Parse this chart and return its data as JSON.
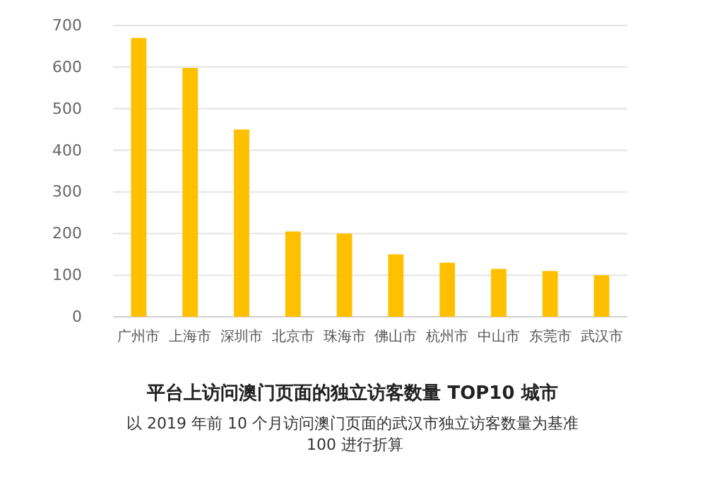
{
  "chart_data": {
    "type": "bar",
    "title": "平台上访问澳门页面的独立访客数量 TOP10 城市",
    "categories": [
      "广州市",
      "上海市",
      "深圳市",
      "北京市",
      "珠海市",
      "佛山市",
      "杭州市",
      "中山市",
      "东莞市",
      "武汉市"
    ],
    "values": [
      670,
      598,
      450,
      205,
      200,
      150,
      130,
      115,
      110,
      100
    ],
    "color": "#ffc000",
    "ylim": [
      0,
      700
    ],
    "yticks": [
      0,
      100,
      200,
      300,
      400,
      500,
      600,
      700
    ],
    "grid": "y",
    "annotations": [
      "以 2019 年前 10 个月访问澳门页面的武汉市独立访客数量为基准 100 进行折算"
    ]
  }
}
